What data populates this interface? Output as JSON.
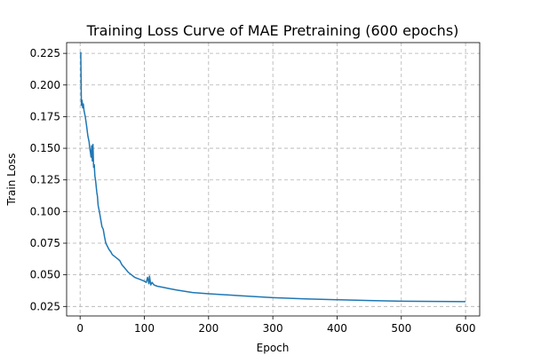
{
  "chart_data": {
    "type": "line",
    "title": "Training Loss Curve of MAE Pretraining (600 epochs)",
    "xlabel": "Epoch",
    "ylabel": "Train Loss",
    "xlim": [
      -21,
      622
    ],
    "ylim": [
      0.0175,
      0.2335
    ],
    "xticks": [
      0,
      100,
      200,
      300,
      400,
      500,
      600
    ],
    "xtick_labels": [
      "0",
      "100",
      "200",
      "300",
      "400",
      "500",
      "600"
    ],
    "yticks": [
      0.025,
      0.05,
      0.075,
      0.1,
      0.125,
      0.15,
      0.175,
      0.2,
      0.225
    ],
    "ytick_labels": [
      "0.025",
      "0.050",
      "0.075",
      "0.100",
      "0.125",
      "0.150",
      "0.175",
      "0.200",
      "0.225"
    ],
    "grid": true,
    "series": [
      {
        "color": "#1f77b4",
        "x": [
          1,
          2,
          3,
          4,
          5,
          6,
          8,
          10,
          12,
          14,
          15,
          16,
          17,
          18,
          19,
          20,
          21,
          22,
          23,
          24,
          25,
          26,
          27,
          28,
          30,
          32,
          34,
          36,
          38,
          40,
          42,
          45,
          48,
          50,
          55,
          60,
          62,
          65,
          70,
          75,
          80,
          85,
          90,
          95,
          100,
          103,
          105,
          107,
          108,
          110,
          112,
          115,
          120,
          130,
          140,
          150,
          175,
          200,
          250,
          300,
          350,
          400,
          450,
          500,
          550,
          600
        ],
        "y": [
          0.226,
          0.184,
          0.188,
          0.182,
          0.185,
          0.18,
          0.175,
          0.168,
          0.16,
          0.155,
          0.15,
          0.147,
          0.143,
          0.152,
          0.14,
          0.153,
          0.135,
          0.137,
          0.128,
          0.125,
          0.12,
          0.115,
          0.112,
          0.105,
          0.1,
          0.094,
          0.088,
          0.086,
          0.08,
          0.075,
          0.073,
          0.07,
          0.068,
          0.066,
          0.064,
          0.062,
          0.061,
          0.058,
          0.055,
          0.052,
          0.05,
          0.048,
          0.047,
          0.046,
          0.045,
          0.044,
          0.048,
          0.043,
          0.049,
          0.042,
          0.044,
          0.042,
          0.041,
          0.04,
          0.039,
          0.038,
          0.036,
          0.035,
          0.0335,
          0.032,
          0.031,
          0.0303,
          0.0297,
          0.0292,
          0.029,
          0.0288
        ]
      }
    ]
  }
}
